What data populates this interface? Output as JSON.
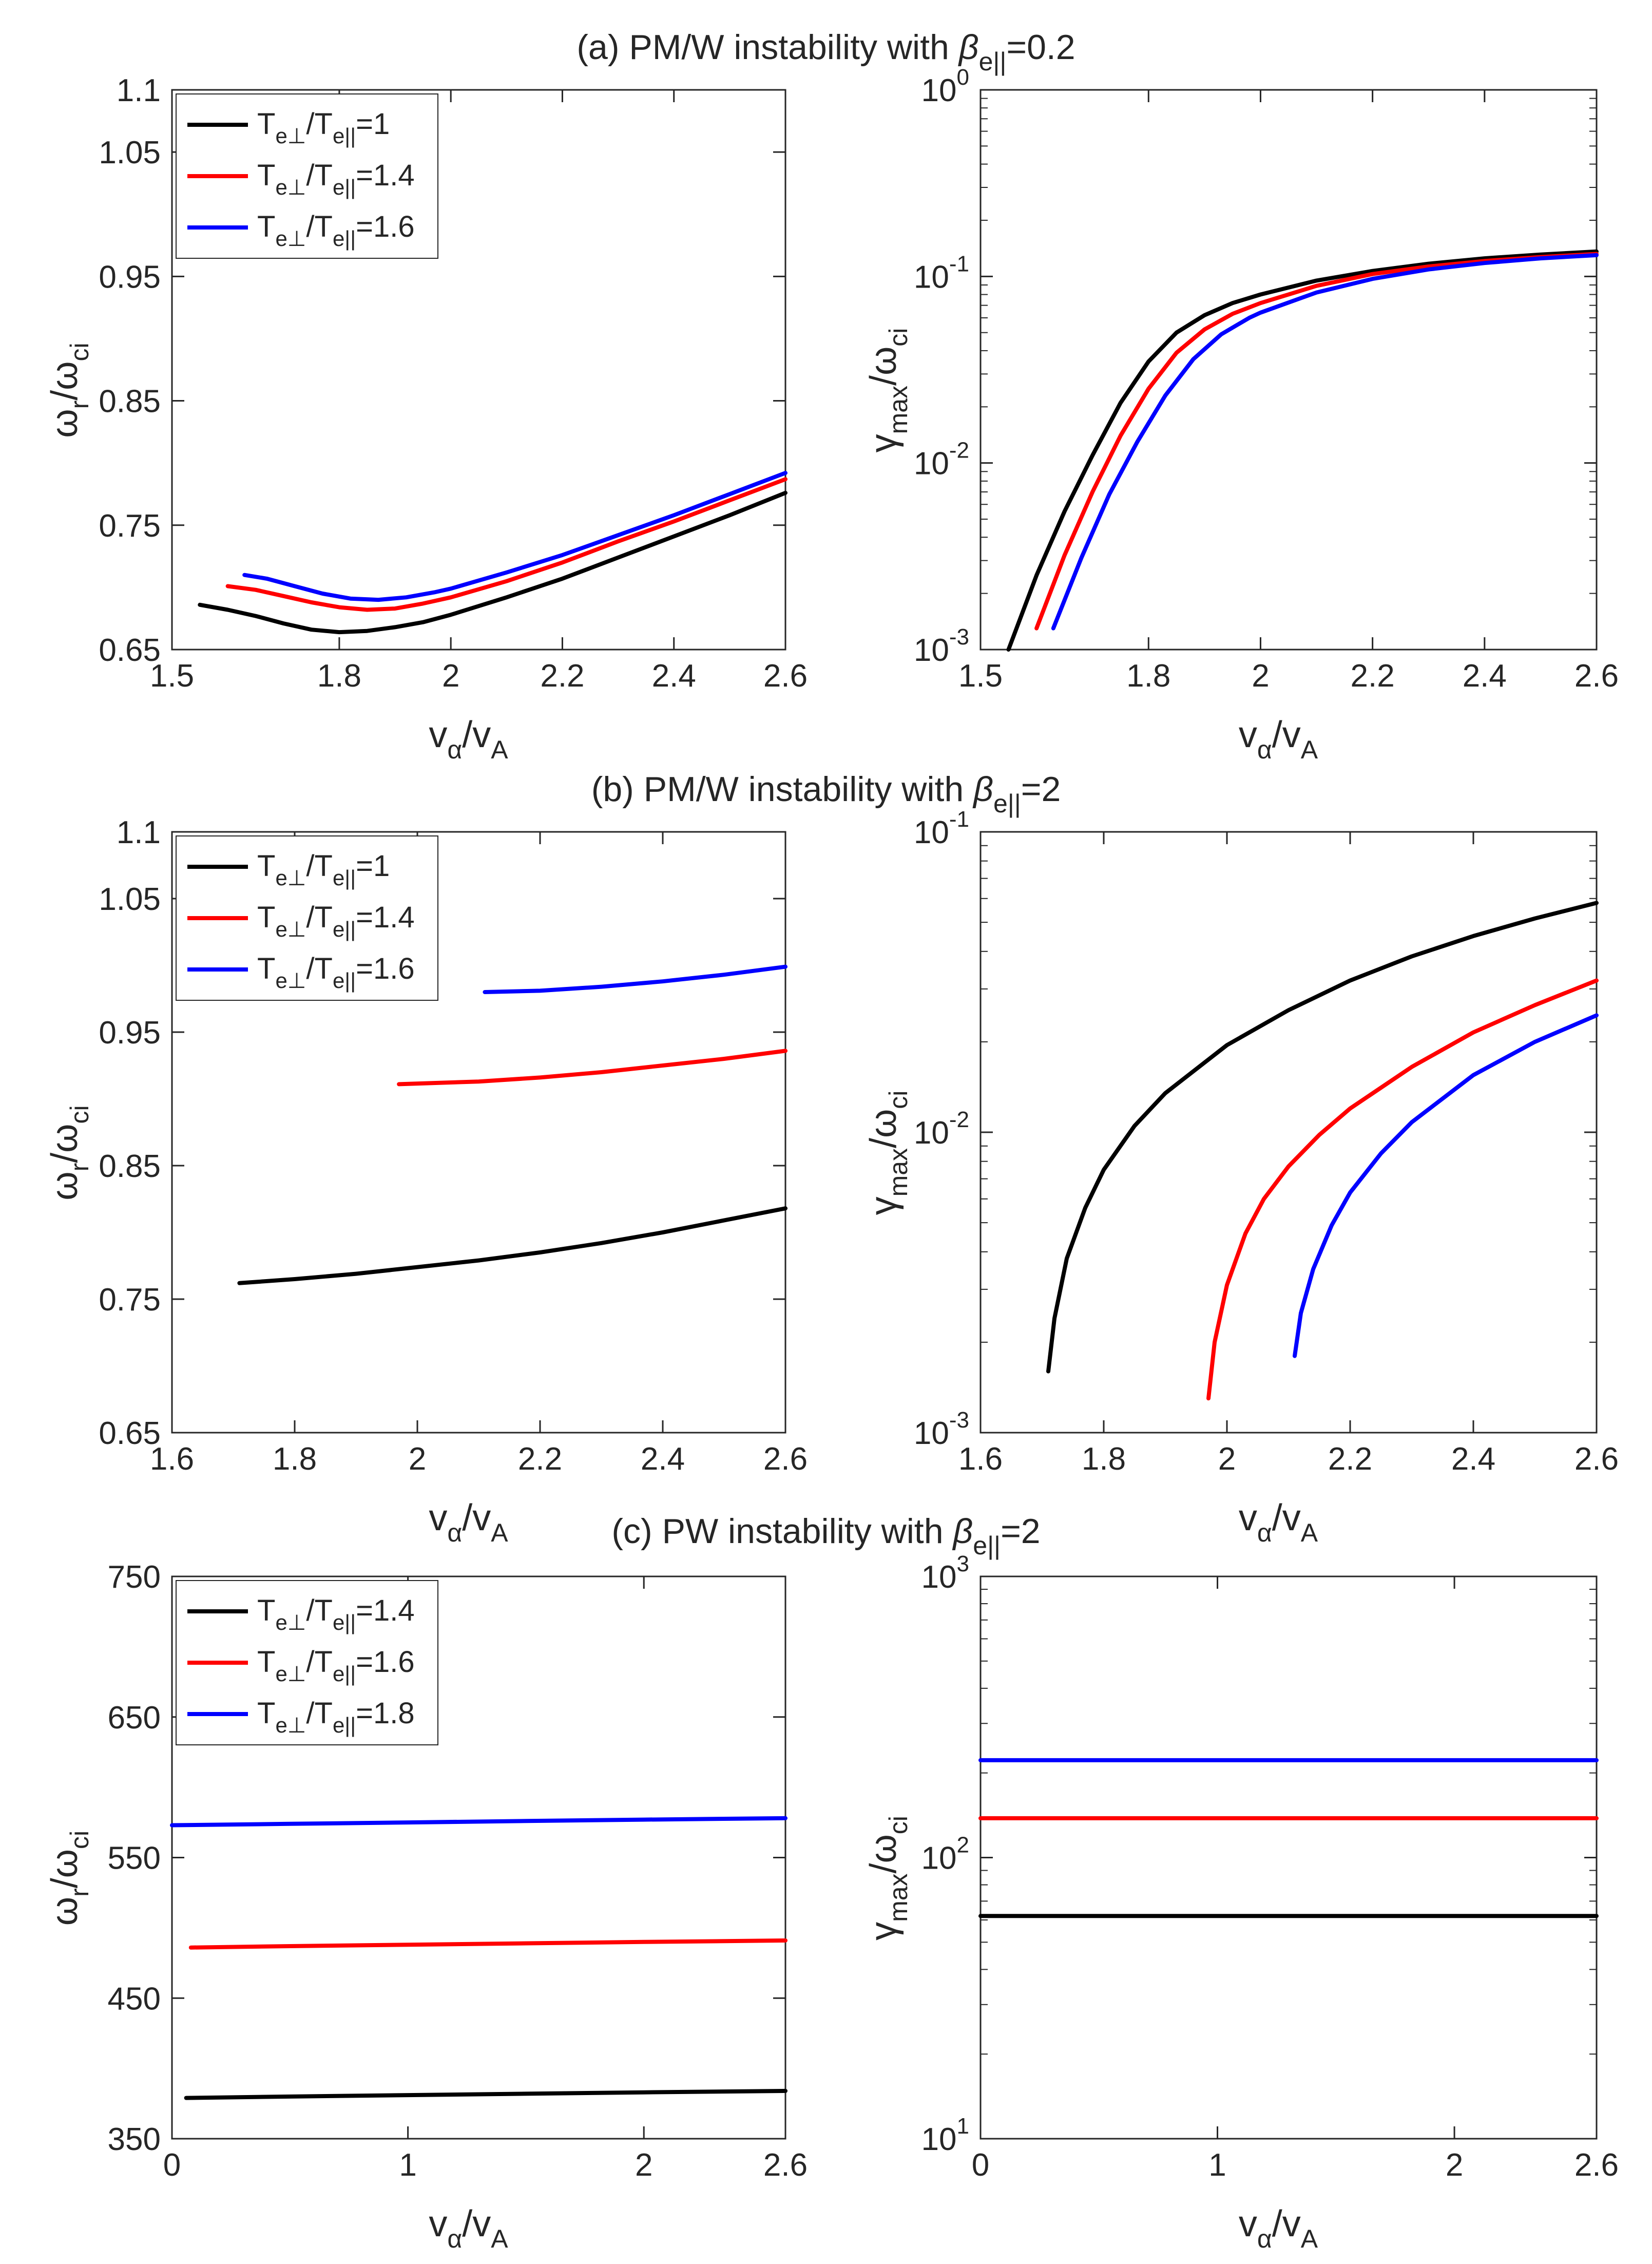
{
  "colors": {
    "black": "#000000",
    "red": "#ff0000",
    "blue": "#0000ff",
    "axis": "#262626"
  },
  "panel_titles": [
    {
      "pre": "(a) PM/W instability with ",
      "sym": "β",
      "sub": "e||",
      "post": "=0.2"
    },
    {
      "pre": "(b) PM/W instability with ",
      "sym": "β",
      "sub": "e||",
      "post": "=2"
    },
    {
      "pre": "(c) PW instability with ",
      "sym": "β",
      "sub": "e||",
      "post": "=2"
    }
  ],
  "axis_labels": {
    "x": {
      "v1": "v",
      "s1": "α",
      "slash": "/v",
      "s2": "A"
    },
    "y_left": {
      "v1": "ω",
      "s1": "r",
      "slash": "/ω",
      "s2": "ci"
    },
    "y_right": {
      "v1": "γ",
      "s1": "max",
      "slash": "/ω",
      "s2": "ci"
    }
  },
  "legend_label_parts": {
    "t1": "T",
    "s1": "e⊥",
    "slash": "/T",
    "s2": "e||",
    "eq": "="
  },
  "chart_data": [
    {
      "id": "a-left",
      "type": "line",
      "yscale": "linear",
      "xlim": [
        1.5,
        2.6
      ],
      "ylim": [
        0.65,
        1.1
      ],
      "xticks": [
        1.5,
        1.8,
        2,
        2.2,
        2.4,
        2.6
      ],
      "xtick_labels": [
        "1.5",
        "1.8",
        "2",
        "2.2",
        "2.4",
        "2.6"
      ],
      "yticks": [
        0.65,
        0.75,
        0.85,
        0.95,
        1.05,
        1.1
      ],
      "ytick_labels": [
        "0.65",
        "0.75",
        "0.85",
        "0.95",
        "1.05",
        "1.1"
      ],
      "xlabel": "vα/vA",
      "ylabel": "ωr/ωci",
      "legend": "top-left",
      "series": [
        {
          "name": "Te⊥/Te||=1",
          "legend_value": "1",
          "color": "black",
          "x": [
            1.55,
            1.6,
            1.65,
            1.7,
            1.75,
            1.8,
            1.85,
            1.9,
            1.95,
            2.0,
            2.1,
            2.2,
            2.3,
            2.4,
            2.5,
            2.6
          ],
          "y": [
            0.686,
            0.682,
            0.677,
            0.671,
            0.666,
            0.664,
            0.665,
            0.668,
            0.672,
            0.678,
            0.692,
            0.707,
            0.724,
            0.741,
            0.758,
            0.776
          ]
        },
        {
          "name": "Te⊥/Te||=1.4",
          "legend_value": "1.4",
          "color": "red",
          "x": [
            1.6,
            1.65,
            1.7,
            1.75,
            1.8,
            1.85,
            1.9,
            1.95,
            2.0,
            2.1,
            2.2,
            2.3,
            2.4,
            2.5,
            2.6
          ],
          "y": [
            0.701,
            0.698,
            0.693,
            0.688,
            0.684,
            0.682,
            0.683,
            0.687,
            0.692,
            0.705,
            0.72,
            0.737,
            0.753,
            0.77,
            0.787
          ]
        },
        {
          "name": "Te⊥/Te||=1.6",
          "legend_value": "1.6",
          "color": "blue",
          "x": [
            1.63,
            1.67,
            1.72,
            1.77,
            1.82,
            1.87,
            1.92,
            1.97,
            2.0,
            2.1,
            2.2,
            2.3,
            2.4,
            2.5,
            2.6
          ],
          "y": [
            0.71,
            0.707,
            0.701,
            0.695,
            0.691,
            0.69,
            0.692,
            0.696,
            0.699,
            0.712,
            0.726,
            0.742,
            0.758,
            0.775,
            0.792
          ]
        }
      ]
    },
    {
      "id": "a-right",
      "type": "line",
      "yscale": "log",
      "xlim": [
        1.5,
        2.6
      ],
      "ylim": [
        0.001,
        1
      ],
      "xticks": [
        1.5,
        1.8,
        2,
        2.2,
        2.4,
        2.6
      ],
      "xtick_labels": [
        "1.5",
        "1.8",
        "2",
        "2.2",
        "2.4",
        "2.6"
      ],
      "yticks": [
        0.001,
        0.01,
        0.1,
        1
      ],
      "ytick_labels": [
        {
          "b": "10",
          "e": "-3"
        },
        {
          "b": "10",
          "e": "-2"
        },
        {
          "b": "10",
          "e": "-1"
        },
        {
          "b": "10",
          "e": "0"
        }
      ],
      "xlabel": "vα/vA",
      "ylabel": "γmax/ωci",
      "series": [
        {
          "name": "Te⊥/Te||=1",
          "color": "black",
          "x": [
            1.55,
            1.6,
            1.65,
            1.7,
            1.75,
            1.8,
            1.85,
            1.9,
            1.95,
            2.0,
            2.1,
            2.2,
            2.3,
            2.4,
            2.5,
            2.6
          ],
          "y": [
            0.001,
            0.0025,
            0.0055,
            0.011,
            0.021,
            0.035,
            0.05,
            0.062,
            0.072,
            0.08,
            0.095,
            0.107,
            0.117,
            0.125,
            0.131,
            0.136
          ]
        },
        {
          "name": "Te⊥/Te||=1.4",
          "color": "red",
          "x": [
            1.6,
            1.65,
            1.7,
            1.75,
            1.8,
            1.85,
            1.9,
            1.95,
            2.0,
            2.1,
            2.2,
            2.3,
            2.4,
            2.5,
            2.6
          ],
          "y": [
            0.0013,
            0.0032,
            0.007,
            0.014,
            0.025,
            0.039,
            0.052,
            0.063,
            0.072,
            0.089,
            0.103,
            0.113,
            0.121,
            0.127,
            0.132
          ]
        },
        {
          "name": "Te⊥/Te||=1.6",
          "color": "blue",
          "x": [
            1.63,
            1.68,
            1.73,
            1.78,
            1.83,
            1.88,
            1.93,
            1.98,
            2.0,
            2.1,
            2.2,
            2.3,
            2.4,
            2.5,
            2.6
          ],
          "y": [
            0.0013,
            0.0031,
            0.0068,
            0.013,
            0.023,
            0.036,
            0.049,
            0.06,
            0.064,
            0.082,
            0.097,
            0.109,
            0.118,
            0.125,
            0.13
          ]
        }
      ]
    },
    {
      "id": "b-left",
      "type": "line",
      "yscale": "linear",
      "xlim": [
        1.6,
        2.6
      ],
      "ylim": [
        0.65,
        1.1
      ],
      "xticks": [
        1.6,
        1.8,
        2,
        2.2,
        2.4,
        2.6
      ],
      "xtick_labels": [
        "1.6",
        "1.8",
        "2",
        "2.2",
        "2.4",
        "2.6"
      ],
      "yticks": [
        0.65,
        0.75,
        0.85,
        0.95,
        1.05,
        1.1
      ],
      "ytick_labels": [
        "0.65",
        "0.75",
        "0.85",
        "0.95",
        "1.05",
        "1.1"
      ],
      "xlabel": "vα/vA",
      "ylabel": "ωr/ωci",
      "legend": "top-left",
      "series": [
        {
          "name": "Te⊥/Te||=1",
          "legend_value": "1",
          "color": "black",
          "x": [
            1.71,
            1.8,
            1.9,
            2.0,
            2.1,
            2.2,
            2.3,
            2.4,
            2.5,
            2.6
          ],
          "y": [
            0.762,
            0.765,
            0.769,
            0.774,
            0.779,
            0.785,
            0.792,
            0.8,
            0.809,
            0.818
          ]
        },
        {
          "name": "Te⊥/Te||=1.4",
          "legend_value": "1.4",
          "color": "red",
          "x": [
            1.97,
            2.1,
            2.2,
            2.3,
            2.4,
            2.5,
            2.6
          ],
          "y": [
            0.911,
            0.913,
            0.916,
            0.92,
            0.925,
            0.93,
            0.936
          ]
        },
        {
          "name": "Te⊥/Te||=1.6",
          "legend_value": "1.6",
          "color": "blue",
          "x": [
            2.11,
            2.2,
            2.3,
            2.4,
            2.5,
            2.6
          ],
          "y": [
            0.98,
            0.981,
            0.984,
            0.988,
            0.993,
            0.999
          ]
        }
      ]
    },
    {
      "id": "b-right",
      "type": "line",
      "yscale": "log",
      "xlim": [
        1.6,
        2.6
      ],
      "ylim": [
        0.001,
        0.1
      ],
      "xticks": [
        1.6,
        1.8,
        2,
        2.2,
        2.4,
        2.6
      ],
      "xtick_labels": [
        "1.6",
        "1.8",
        "2",
        "2.2",
        "2.4",
        "2.6"
      ],
      "yticks": [
        0.001,
        0.01,
        0.1
      ],
      "ytick_labels": [
        {
          "b": "10",
          "e": "-3"
        },
        {
          "b": "10",
          "e": "-2"
        },
        {
          "b": "10",
          "e": "-1"
        }
      ],
      "xlabel": "vα/vA",
      "ylabel": "γmax/ωci",
      "series": [
        {
          "name": "Te⊥/Te||=1",
          "color": "black",
          "x": [
            1.71,
            1.72,
            1.74,
            1.77,
            1.8,
            1.85,
            1.9,
            2.0,
            2.1,
            2.2,
            2.3,
            2.4,
            2.5,
            2.6
          ],
          "y": [
            0.0016,
            0.0024,
            0.0038,
            0.0056,
            0.0075,
            0.0105,
            0.0135,
            0.0195,
            0.0255,
            0.032,
            0.0385,
            0.045,
            0.0515,
            0.058
          ]
        },
        {
          "name": "Te⊥/Te||=1.4",
          "color": "red",
          "x": [
            1.97,
            1.98,
            2.0,
            2.03,
            2.06,
            2.1,
            2.15,
            2.2,
            2.3,
            2.4,
            2.5,
            2.6
          ],
          "y": [
            0.0013,
            0.002,
            0.0031,
            0.0046,
            0.006,
            0.0077,
            0.0098,
            0.012,
            0.0165,
            0.0215,
            0.0265,
            0.032
          ]
        },
        {
          "name": "Te⊥/Te||=1.6",
          "color": "blue",
          "x": [
            2.11,
            2.12,
            2.14,
            2.17,
            2.2,
            2.25,
            2.3,
            2.4,
            2.5,
            2.6
          ],
          "y": [
            0.0018,
            0.0025,
            0.0035,
            0.0049,
            0.0063,
            0.0085,
            0.0108,
            0.0155,
            0.02,
            0.0245
          ]
        }
      ]
    },
    {
      "id": "c-left",
      "type": "line",
      "yscale": "linear",
      "xlim": [
        0,
        2.6
      ],
      "ylim": [
        350,
        750
      ],
      "xticks": [
        0,
        1,
        2,
        2.6
      ],
      "xtick_labels": [
        "0",
        "1",
        "2",
        "2.6"
      ],
      "yticks": [
        350,
        450,
        550,
        650,
        750
      ],
      "ytick_labels": [
        "350",
        "450",
        "550",
        "650",
        "750"
      ],
      "xlabel": "vα/vA",
      "ylabel": "ωr/ωci",
      "legend": "top-left",
      "series": [
        {
          "name": "Te⊥/Te||=1.4",
          "legend_value": "1.4",
          "color": "black",
          "x": [
            0.06,
            0.5,
            1.0,
            1.5,
            2.0,
            2.6
          ],
          "y": [
            379,
            380,
            381,
            382,
            383,
            384
          ]
        },
        {
          "name": "Te⊥/Te||=1.6",
          "legend_value": "1.6",
          "color": "red",
          "x": [
            0.08,
            0.5,
            1.0,
            1.5,
            2.0,
            2.6
          ],
          "y": [
            486,
            487,
            488,
            489,
            490,
            491
          ]
        },
        {
          "name": "Te⊥/Te||=1.8",
          "legend_value": "1.8",
          "color": "blue",
          "x": [
            0.0,
            0.5,
            1.0,
            1.5,
            2.0,
            2.6
          ],
          "y": [
            573,
            574,
            575,
            576,
            577,
            578
          ]
        }
      ]
    },
    {
      "id": "c-right",
      "type": "line",
      "yscale": "log",
      "xlim": [
        0,
        2.6
      ],
      "ylim": [
        10,
        1000
      ],
      "xticks": [
        0,
        1,
        2,
        2.6
      ],
      "xtick_labels": [
        "0",
        "1",
        "2",
        "2.6"
      ],
      "yticks": [
        10,
        100,
        1000
      ],
      "ytick_labels": [
        {
          "b": "10",
          "e": "1"
        },
        {
          "b": "10",
          "e": "2"
        },
        {
          "b": "10",
          "e": "3"
        }
      ],
      "xlabel": "vα/vA",
      "ylabel": "γmax/ωci",
      "series": [
        {
          "name": "Te⊥/Te||=1.4",
          "color": "black",
          "x": [
            0,
            2.6
          ],
          "y": [
            62,
            62
          ]
        },
        {
          "name": "Te⊥/Te||=1.6",
          "color": "red",
          "x": [
            0,
            2.6
          ],
          "y": [
            138,
            138
          ]
        },
        {
          "name": "Te⊥/Te||=1.8",
          "color": "blue",
          "x": [
            0,
            2.6
          ],
          "y": [
            222,
            222
          ]
        }
      ]
    }
  ]
}
